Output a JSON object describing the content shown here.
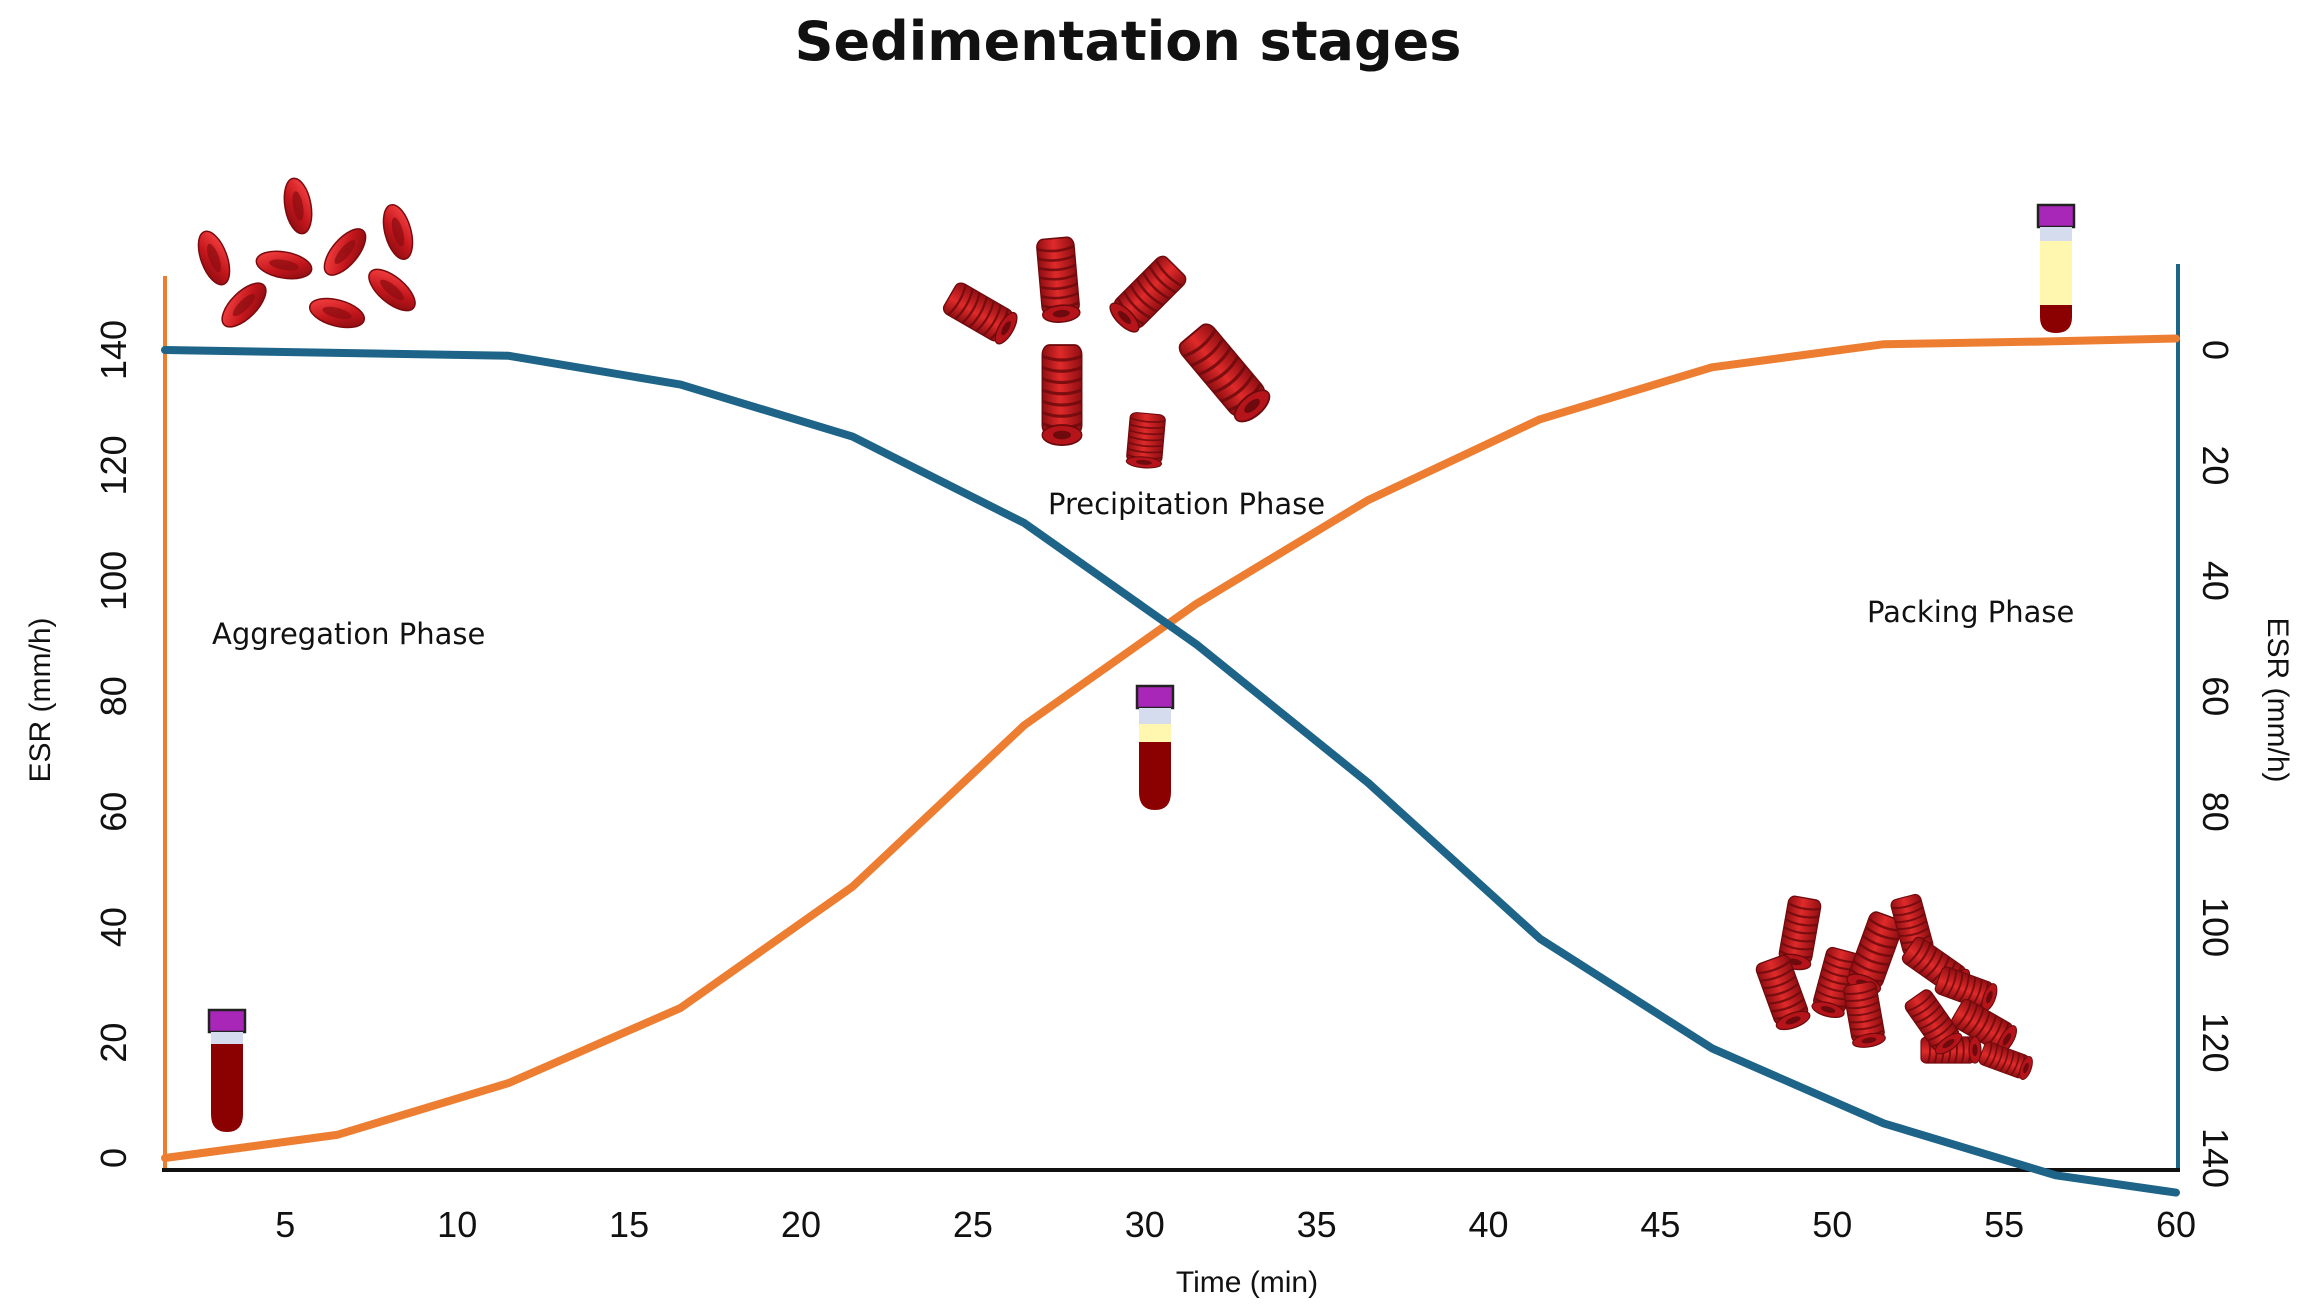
{
  "chart_data": {
    "type": "line",
    "title": "Sedimentation stages",
    "xlabel": "Time (min)",
    "ylabel_left": "ESR (mm/h)",
    "ylabel_right": "ESR (mm/h)",
    "xlim": [
      1.5,
      60
    ],
    "ylim_left": [
      0,
      140
    ],
    "ylim_right_inverted": [
      0,
      140
    ],
    "x_ticks": [
      "5",
      "10",
      "15",
      "20",
      "25",
      "30",
      "35",
      "40",
      "45",
      "50",
      "55",
      "60"
    ],
    "y_ticks_left": [
      "0",
      "20",
      "40",
      "60",
      "80",
      "100",
      "120",
      "140"
    ],
    "y_ticks_right": [
      "0",
      "20",
      "40",
      "60",
      "80",
      "100",
      "120",
      "140"
    ],
    "grid": false,
    "series": [
      {
        "axis": "left",
        "color": "#ED7D31",
        "x": [
          1.5,
          6.5,
          11.5,
          16.5,
          21.5,
          26.5,
          31.5,
          36.5,
          41.5,
          46.5,
          51.5,
          56.5,
          60
        ],
        "values": [
          0,
          4,
          13,
          26,
          47,
          75,
          96,
          114,
          128,
          137,
          141,
          141.5,
          142
        ]
      },
      {
        "axis": "right",
        "color": "#1D6488",
        "x": [
          1.5,
          6.5,
          11.5,
          16.5,
          21.5,
          26.5,
          31.5,
          36.5,
          41.5,
          46.5,
          51.5,
          56.5,
          60
        ],
        "values": [
          0,
          0.5,
          1,
          6,
          15,
          30,
          51,
          75,
          102,
          121,
          134,
          143,
          146
        ]
      }
    ],
    "annotations": [
      "Aggregation Phase",
      "Precipitation Phase",
      "Packing Phase"
    ]
  },
  "colors": {
    "left_axis": "#ED7D31",
    "right_axis": "#1D6488",
    "baseline": "#111111",
    "rbc": "#C4161C",
    "tube_blood": "#8B0000",
    "tube_cap": "#A826B8",
    "tube_plasma": "#FFF7B0"
  },
  "icons": [
    "red-blood-cells-icon",
    "rouleaux-stacks-icon",
    "packed-cells-icon",
    "blood-tube-icon"
  ]
}
